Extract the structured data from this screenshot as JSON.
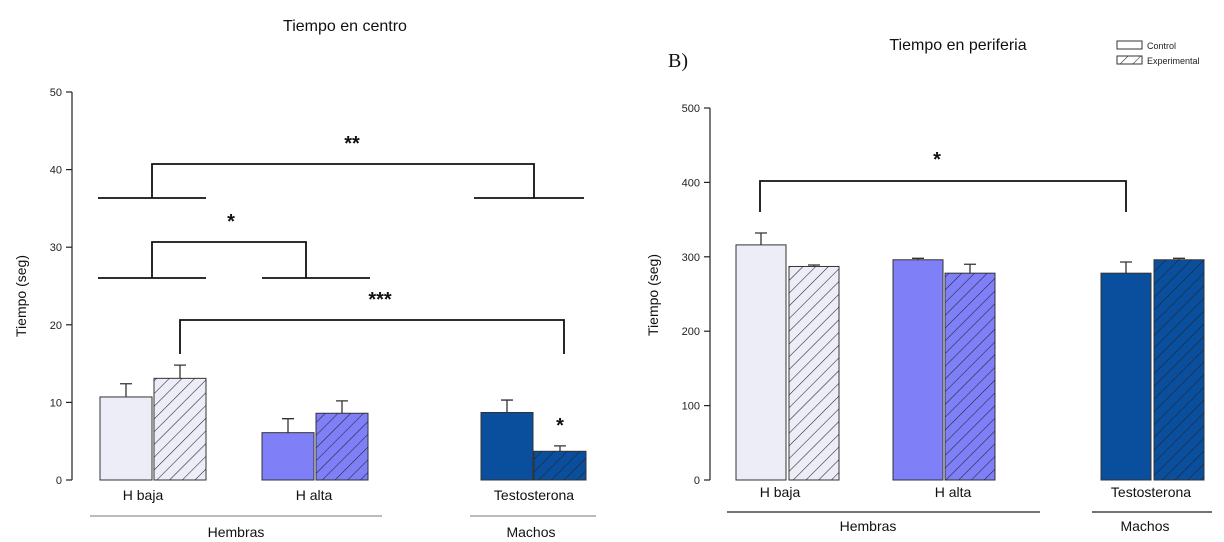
{
  "colors": {
    "h_baja": "#ededf8",
    "h_alta": "#7f7ff8",
    "testosterona": "#0a4f9e"
  },
  "legend": {
    "control": "Control",
    "experimental": "Experimental"
  },
  "chart_data": [
    {
      "type": "bar",
      "title": "Tiempo en centro",
      "ylabel": "Tiempo (seg)",
      "ylim": [
        0,
        50
      ],
      "yticks": [
        0,
        10,
        20,
        30,
        40,
        50
      ],
      "categories": [
        "H baja",
        "H alta",
        "Testosterona"
      ],
      "groups": [
        {
          "label": "Hembras",
          "categories": [
            "H baja",
            "H alta"
          ]
        },
        {
          "label": "Machos",
          "categories": [
            "Testosterona"
          ]
        }
      ],
      "series": [
        {
          "name": "Control",
          "values": [
            10.7,
            6.1,
            8.7
          ],
          "errors": [
            1.7,
            1.8,
            1.6
          ]
        },
        {
          "name": "Experimental",
          "values": [
            13.1,
            8.6,
            3.7
          ],
          "errors": [
            1.7,
            1.6,
            0.7
          ]
        }
      ],
      "significance": [
        {
          "label": "**",
          "between": [
            "Hembras",
            "Machos"
          ]
        },
        {
          "label": "*",
          "between": [
            "H baja",
            "H alta"
          ]
        },
        {
          "label": "***",
          "between": [
            "H baja Experimental",
            "Testosterona Experimental"
          ]
        },
        {
          "label": "*",
          "between": [
            "Testosterona Control",
            "Testosterona Experimental"
          ]
        }
      ]
    },
    {
      "type": "bar",
      "panel": "B)",
      "title": "Tiempo en periferia",
      "ylabel": "Tiempo (seg)",
      "ylim": [
        0,
        500
      ],
      "yticks": [
        0,
        100,
        200,
        300,
        400,
        500
      ],
      "categories": [
        "H baja",
        "H alta",
        "Testosterona"
      ],
      "groups": [
        {
          "label": "Hembras",
          "categories": [
            "H baja",
            "H alta"
          ]
        },
        {
          "label": "Machos",
          "categories": [
            "Testosterona"
          ]
        }
      ],
      "series": [
        {
          "name": "Control",
          "values": [
            316,
            296,
            278
          ],
          "errors": [
            16,
            2,
            15
          ]
        },
        {
          "name": "Experimental",
          "values": [
            287,
            278,
            296
          ],
          "errors": [
            2,
            12,
            2
          ]
        }
      ],
      "significance": [
        {
          "label": "*",
          "between": [
            "H baja Control",
            "Testosterona Control"
          ]
        }
      ]
    }
  ]
}
